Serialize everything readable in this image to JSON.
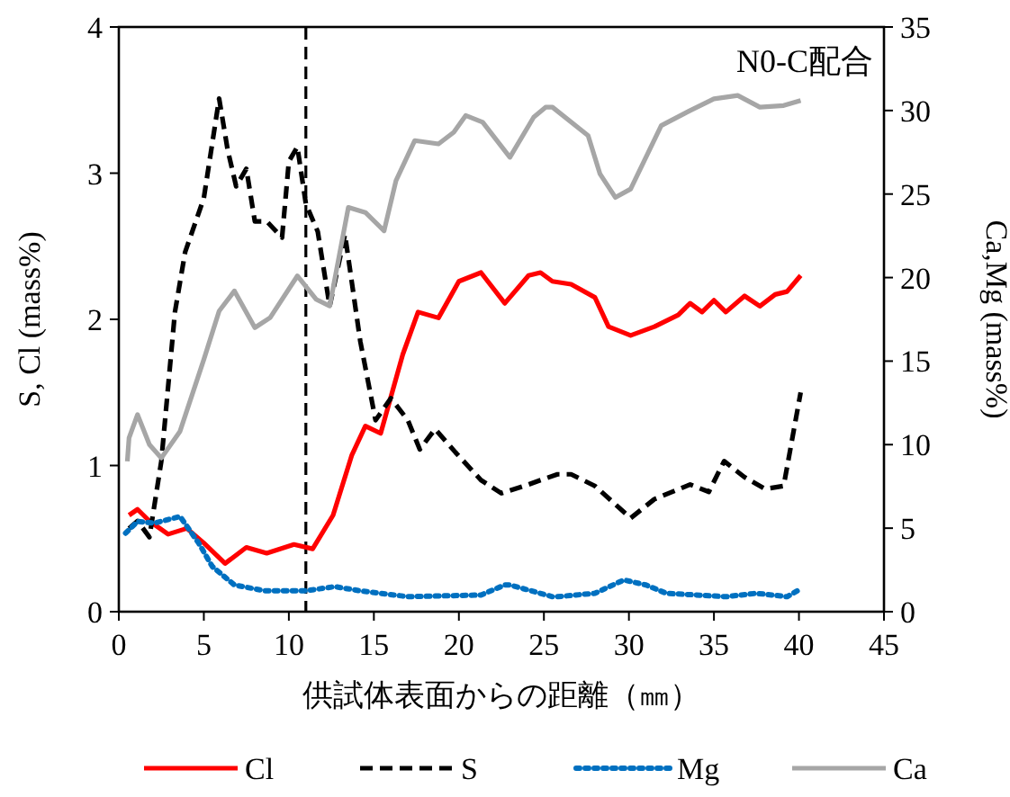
{
  "chart_data": {
    "type": "line",
    "title": "N0-C配合",
    "xlabel": "供試体表面からの距離（㎜）",
    "ylabel": "S, Cl (mass%)",
    "y2label": "Ca,Mg (mass%)",
    "xlim": [
      0,
      45
    ],
    "xticks": [
      0,
      5,
      10,
      15,
      20,
      25,
      30,
      35,
      40,
      45
    ],
    "ylim": [
      0,
      4
    ],
    "yticks": [
      0,
      1,
      2,
      3,
      4
    ],
    "y2lim": [
      0,
      35
    ],
    "y2ticks": [
      0,
      5,
      10,
      15,
      20,
      25,
      30,
      35
    ],
    "grid": false,
    "legend": "bottom",
    "marker": "none",
    "ref_lines": [
      {
        "axis": "x",
        "value": 11,
        "color": "#000000",
        "line_style": "dashed"
      }
    ],
    "series": [
      {
        "name": "Cl",
        "color": "#ff0000",
        "line_style": "solid",
        "x": [
          0.6,
          1.1,
          1.8,
          2.9,
          4.0,
          5.0,
          6.25,
          7.5,
          8.7,
          10.3,
          11.4,
          12.6,
          13.7,
          14.5,
          15.4,
          16.7,
          17.6,
          18.8,
          20.0,
          21.3,
          22.7,
          24.1,
          24.8,
          25.5,
          26.6,
          28.0,
          28.8,
          30.1,
          31.5,
          32.9,
          33.6,
          34.3,
          35.0,
          35.7,
          36.8,
          37.7,
          38.6,
          39.3,
          40.1
        ],
        "values": [
          0.66,
          0.7,
          0.62,
          0.53,
          0.57,
          0.47,
          0.33,
          0.44,
          0.4,
          0.46,
          0.43,
          0.66,
          1.07,
          1.27,
          1.22,
          1.76,
          2.05,
          2.01,
          2.26,
          2.32,
          2.11,
          2.3,
          2.32,
          2.26,
          2.24,
          2.15,
          1.95,
          1.89,
          1.95,
          2.03,
          2.11,
          2.05,
          2.13,
          2.05,
          2.16,
          2.09,
          2.17,
          2.19,
          2.3
        ]
      },
      {
        "name": "S",
        "color": "#000000",
        "line_style": "dashed",
        "x": [
          0.6,
          1.1,
          1.8,
          2.5,
          3.3,
          3.9,
          5.0,
          5.9,
          6.4,
          6.9,
          7.5,
          8.0,
          8.7,
          9.6,
          10.0,
          10.5,
          11.0,
          11.7,
          12.4,
          13.3,
          14.2,
          15.1,
          16.0,
          17.0,
          17.7,
          18.6,
          19.8,
          21.3,
          22.5,
          24.1,
          24.8,
          25.8,
          26.6,
          28.0,
          30.1,
          31.5,
          33.6,
          34.7,
          35.6,
          36.8,
          38.0,
          39.1,
          40.1
        ],
        "values": [
          0.57,
          0.62,
          0.51,
          1.03,
          2.05,
          2.46,
          2.83,
          3.51,
          3.16,
          2.91,
          3.03,
          2.67,
          2.67,
          2.56,
          3.08,
          3.18,
          2.79,
          2.6,
          2.09,
          2.58,
          1.85,
          1.31,
          1.46,
          1.31,
          1.11,
          1.25,
          1.09,
          0.9,
          0.81,
          0.87,
          0.9,
          0.94,
          0.94,
          0.86,
          0.64,
          0.77,
          0.87,
          0.82,
          1.03,
          0.92,
          0.84,
          0.86,
          1.5
        ]
      },
      {
        "name": "Mg",
        "color": "#0070c0",
        "line_style": "dotted",
        "axis": "y2",
        "x": [
          0.4,
          1.1,
          2.1,
          3.6,
          4.7,
          5.5,
          6.8,
          8.6,
          11.0,
          12.7,
          14.2,
          17.0,
          21.3,
          22.7,
          23.0,
          25.5,
          25.8,
          28.0,
          29.7,
          31.0,
          32.2,
          35.7,
          37.5,
          39.3,
          40.0
        ],
        "values": [
          4.7,
          5.4,
          5.3,
          5.7,
          4.1,
          2.7,
          1.6,
          1.25,
          1.25,
          1.5,
          1.25,
          0.9,
          1.0,
          1.6,
          1.6,
          0.9,
          0.9,
          1.1,
          1.9,
          1.6,
          1.1,
          0.9,
          1.1,
          0.9,
          1.3
        ]
      },
      {
        "name": "Ca",
        "color": "#a6a6a6",
        "line_style": "solid",
        "axis": "y2",
        "x": [
          0.5,
          0.6,
          1.1,
          1.8,
          2.5,
          3.6,
          5.0,
          5.9,
          6.8,
          8.0,
          8.9,
          10.5,
          11.6,
          12.4,
          13.5,
          14.5,
          15.6,
          16.3,
          17.4,
          18.8,
          19.7,
          20.4,
          21.4,
          23.0,
          24.4,
          25.1,
          25.5,
          27.6,
          28.3,
          29.2,
          30.1,
          31.9,
          33.6,
          35.0,
          36.4,
          37.7,
          39.1,
          40.1
        ],
        "values": [
          9.0,
          10.4,
          11.8,
          10.0,
          9.2,
          10.8,
          15.1,
          18.0,
          19.2,
          17.0,
          17.6,
          20.1,
          18.7,
          18.3,
          24.2,
          23.9,
          22.8,
          25.8,
          28.2,
          28.0,
          28.7,
          29.7,
          29.3,
          27.2,
          29.6,
          30.2,
          30.2,
          28.5,
          26.2,
          24.8,
          25.3,
          29.1,
          30.0,
          30.7,
          30.9,
          30.2,
          30.3,
          30.6
        ]
      }
    ]
  }
}
